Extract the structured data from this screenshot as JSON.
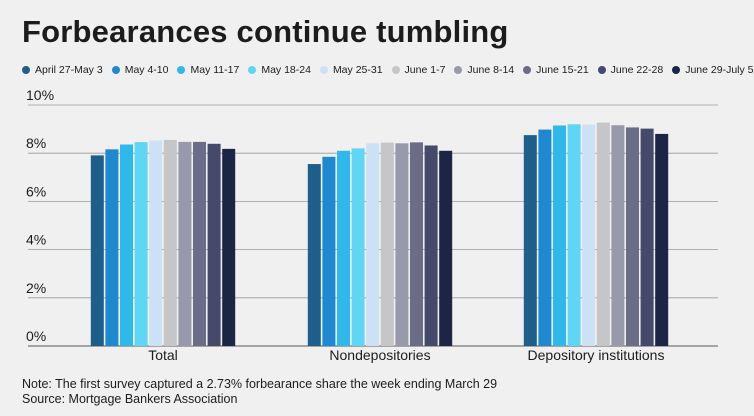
{
  "title": "Forbearances continue tumbling",
  "note": "Note: The first survey captured a 2.73% forbearance share the week ending March 29",
  "source": "Source: Mortgage Bankers Association",
  "chart_data": {
    "type": "bar",
    "categories": [
      "Total",
      "Nondepositories",
      "Depository institutions"
    ],
    "ylim": [
      0,
      10
    ],
    "yticks": [
      0,
      2,
      4,
      6,
      8,
      10
    ],
    "ytick_labels": [
      "0%",
      "2%",
      "4%",
      "6%",
      "8%",
      "10%"
    ],
    "series": [
      {
        "name": "April 27-May 3",
        "color": "#1d5f8a",
        "values": [
          7.91,
          7.55,
          8.75
        ]
      },
      {
        "name": "May 4-10",
        "color": "#1e88d0",
        "values": [
          8.16,
          7.85,
          8.98
        ]
      },
      {
        "name": "May 11-17",
        "color": "#2fb8ea",
        "values": [
          8.36,
          8.1,
          9.15
        ]
      },
      {
        "name": "May 18-24",
        "color": "#5fd6f5",
        "values": [
          8.46,
          8.2,
          9.2
        ]
      },
      {
        "name": "May 25-31",
        "color": "#cde1f6",
        "values": [
          8.53,
          8.41,
          9.19
        ]
      },
      {
        "name": "June 1-7",
        "color": "#c6c6c8",
        "values": [
          8.55,
          8.44,
          9.27
        ]
      },
      {
        "name": "June 8-14",
        "color": "#9899aa",
        "values": [
          8.47,
          8.41,
          9.16
        ]
      },
      {
        "name": "June 15-21",
        "color": "#6b6d86",
        "values": [
          8.47,
          8.45,
          9.07
        ]
      },
      {
        "name": "June 22-28",
        "color": "#45496a",
        "values": [
          8.39,
          8.32,
          9.02
        ]
      },
      {
        "name": "June 29-July 5",
        "color": "#1d2546",
        "values": [
          8.18,
          8.1,
          8.8
        ]
      }
    ]
  }
}
